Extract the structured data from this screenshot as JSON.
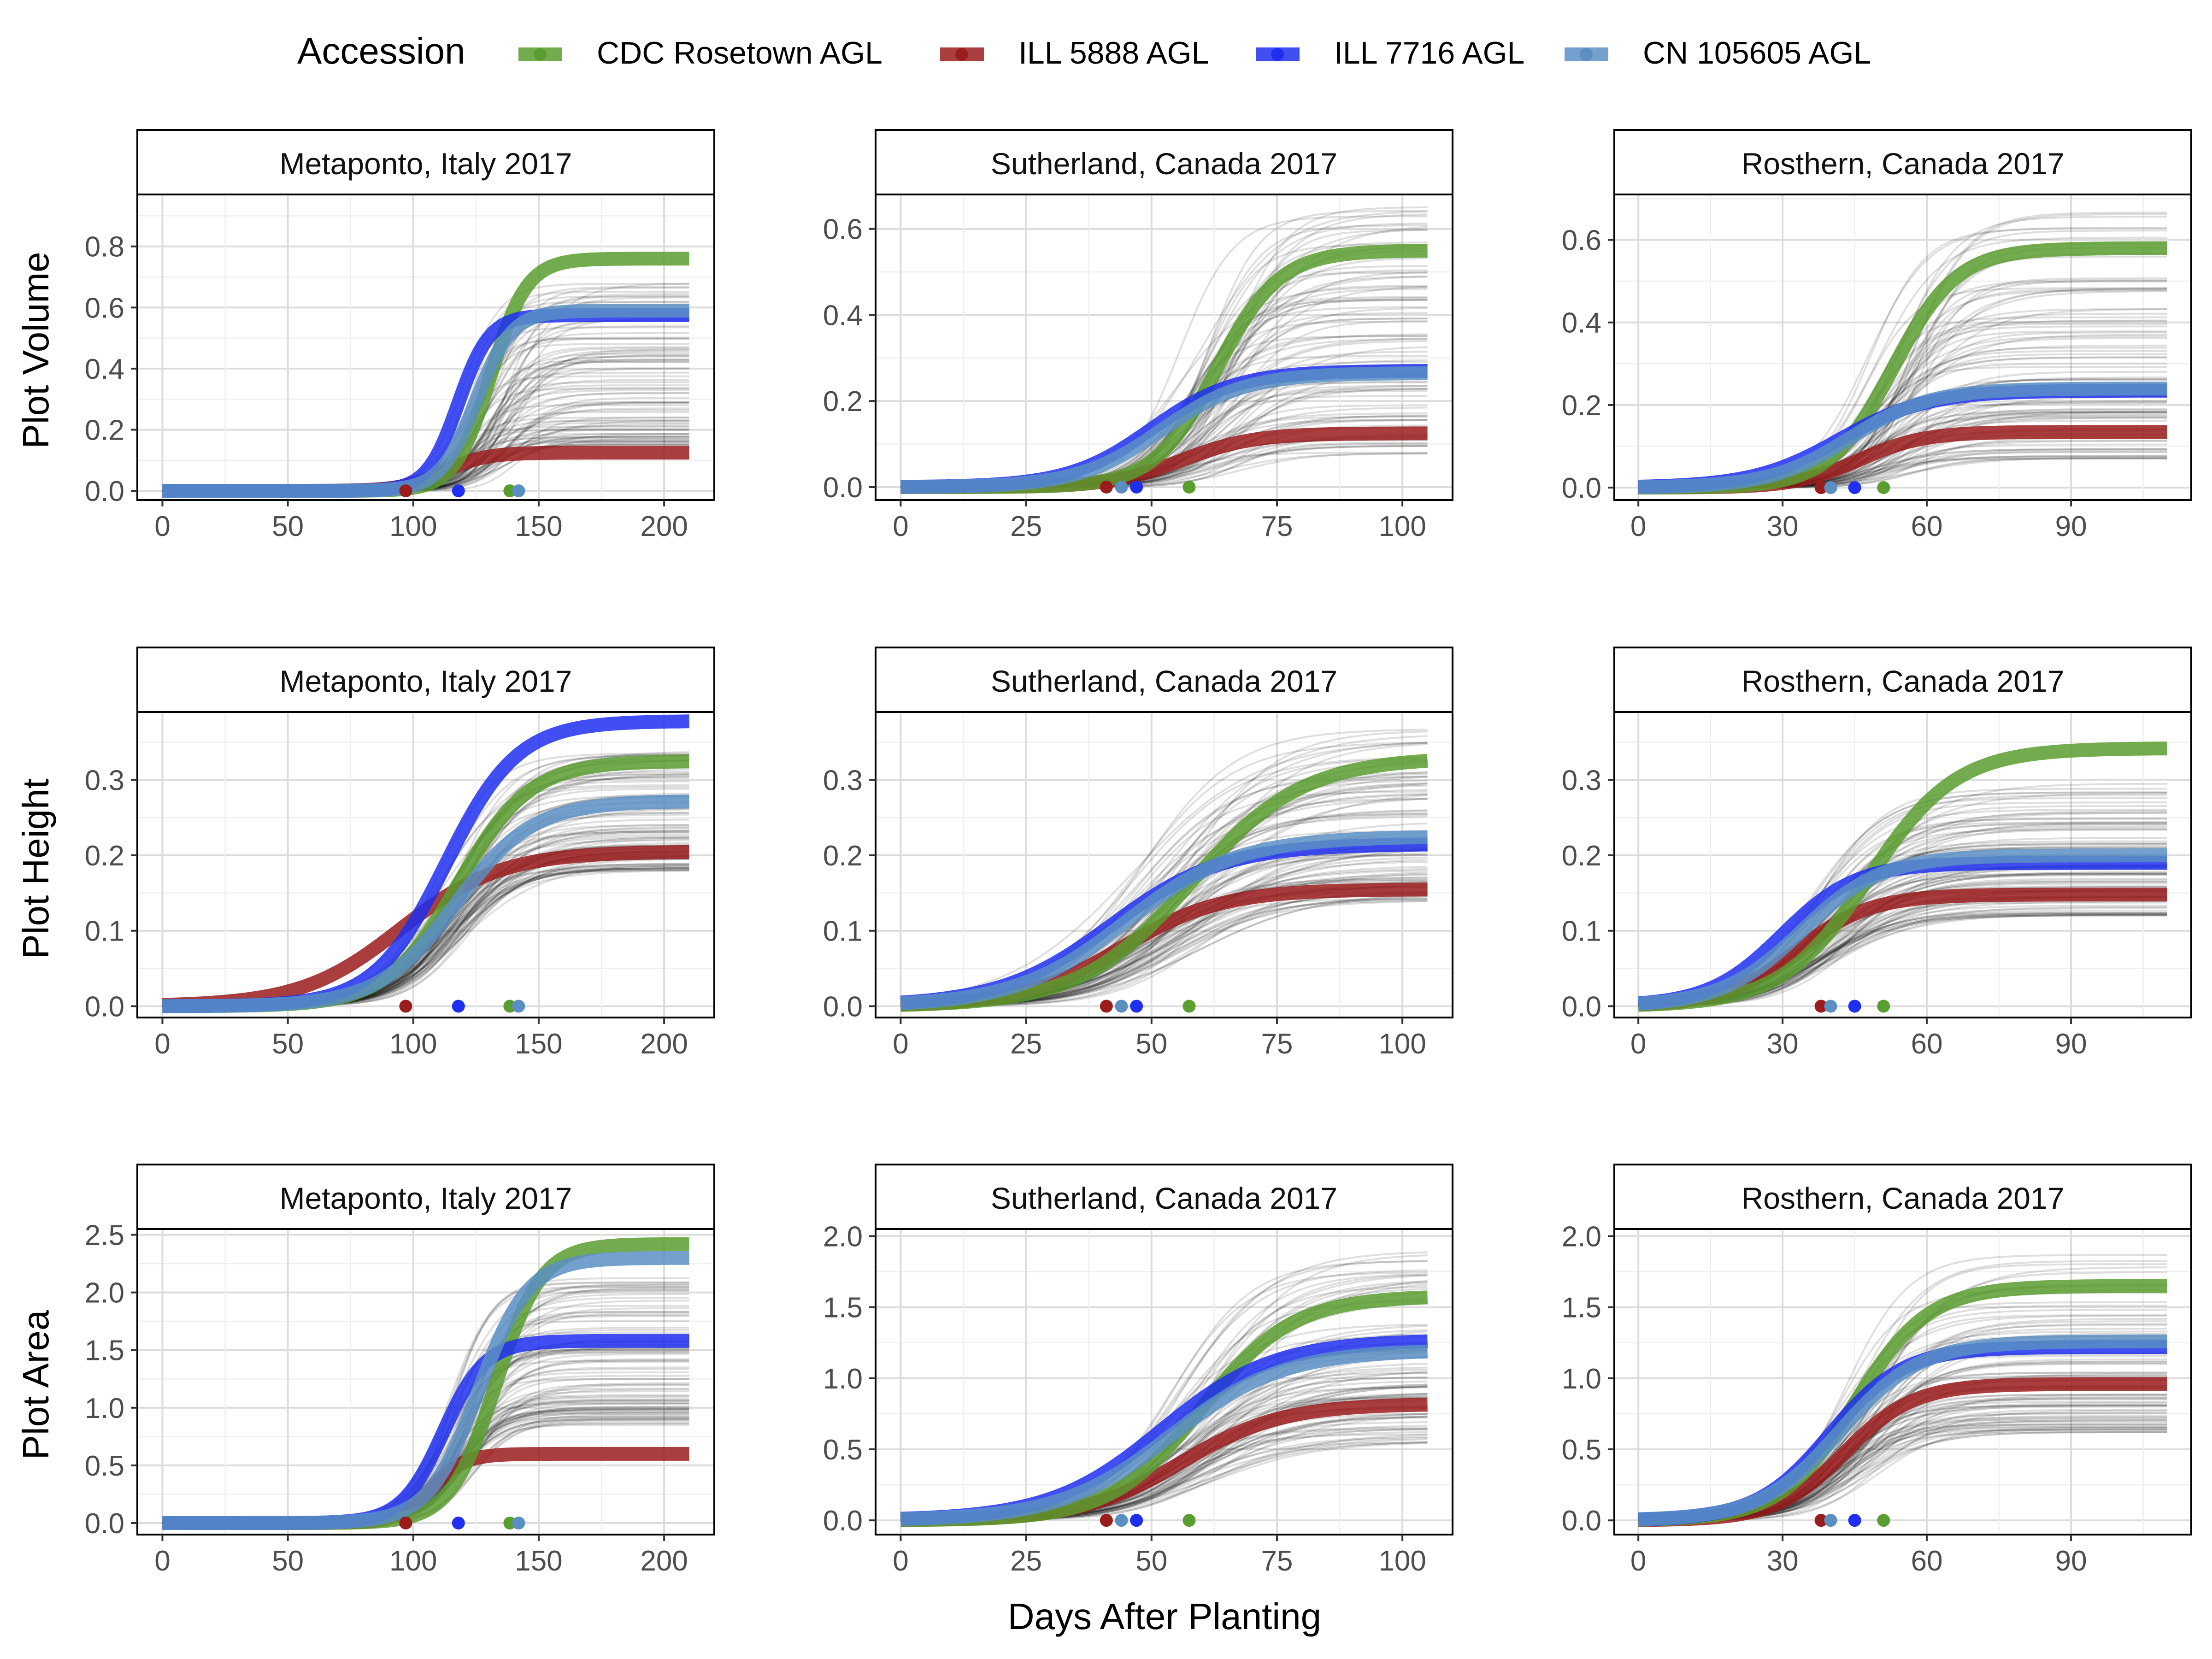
{
  "figure": {
    "x_axis_label": "Days After Planting",
    "background_curve_color": "#000000",
    "legend": {
      "title": "Accession",
      "entries": [
        {
          "name": "CDC Rosetown AGL",
          "color": "#5a9e2f"
        },
        {
          "name": "ILL 5888 AGL",
          "color": "#9b1c1c"
        },
        {
          "name": "ILL 7716 AGL",
          "color": "#1f2ff0"
        },
        {
          "name": "CN 105605 AGL",
          "color": "#5b8fc4"
        }
      ]
    },
    "row_labels": [
      "Plot Volume",
      "Plot Height",
      "Plot Area"
    ],
    "col_titles": [
      "Metaponto, Italy 2017",
      "Sutherland, Canada 2017",
      "Rosthern, Canada 2017"
    ]
  },
  "chart_data": [
    {
      "type": "line",
      "title": "Metaponto, Italy 2017",
      "ylabel": "Plot Volume",
      "xlabel": "Days After Planting",
      "xlim": [
        -10,
        220
      ],
      "ylim": [
        -0.03,
        0.97
      ],
      "x_ticks": [
        0,
        50,
        100,
        150,
        200
      ],
      "y_ticks": [
        0.0,
        0.2,
        0.4,
        0.6,
        0.8
      ],
      "x_tick_labels": [
        "0",
        "50",
        "100",
        "150",
        "200"
      ],
      "y_tick_labels": [
        "0.0",
        "0.2",
        "0.4",
        "0.6",
        "0.8"
      ],
      "x_range": [
        0,
        210
      ],
      "background_curves": {
        "asymptote_range": [
          0.15,
          0.68
        ],
        "midpoint_range": [
          118,
          140
        ],
        "rate_range": [
          0.09,
          0.16
        ],
        "count": 90
      },
      "series": [
        {
          "name": "CDC Rosetown AGL",
          "asymptote": 0.76,
          "midpoint": 131,
          "rate": 0.14,
          "marker_x": 138.5
        },
        {
          "name": "ILL 5888 AGL",
          "asymptote": 0.125,
          "midpoint": 112,
          "rate": 0.12,
          "marker_x": 97
        },
        {
          "name": "ILL 7716 AGL",
          "asymptote": 0.575,
          "midpoint": 118,
          "rate": 0.16,
          "marker_x": 118
        },
        {
          "name": "CN 105605 AGL",
          "asymptote": 0.59,
          "midpoint": 125,
          "rate": 0.14,
          "marker_x": 142
        }
      ]
    },
    {
      "type": "line",
      "title": "Sutherland, Canada 2017",
      "ylabel": "Plot Volume",
      "xlabel": "Days After Planting",
      "xlim": [
        -5,
        110
      ],
      "ylim": [
        -0.03,
        0.68
      ],
      "x_ticks": [
        0,
        25,
        50,
        75,
        100
      ],
      "y_ticks": [
        0.0,
        0.2,
        0.4,
        0.6
      ],
      "x_tick_labels": [
        "0",
        "25",
        "50",
        "75",
        "100"
      ],
      "y_tick_labels": [
        "0.0",
        "0.2",
        "0.4",
        "0.6"
      ],
      "x_range": [
        0,
        105
      ],
      "background_curves": {
        "asymptote_range": [
          0.07,
          0.66
        ],
        "midpoint_range": [
          55,
          68
        ],
        "rate_range": [
          0.12,
          0.2
        ],
        "count": 90
      },
      "series": [
        {
          "name": "CDC Rosetown AGL",
          "asymptote": 0.55,
          "midpoint": 63,
          "rate": 0.16,
          "marker_x": 57.5
        },
        {
          "name": "ILL 5888 AGL",
          "asymptote": 0.125,
          "midpoint": 56,
          "rate": 0.14,
          "marker_x": 41
        },
        {
          "name": "ILL 7716 AGL",
          "asymptote": 0.27,
          "midpoint": 50,
          "rate": 0.12,
          "marker_x": 47
        },
        {
          "name": "CN 105605 AGL",
          "asymptote": 0.265,
          "midpoint": 52,
          "rate": 0.12,
          "marker_x": 44
        }
      ]
    },
    {
      "type": "line",
      "title": "Rosthern, Canada 2017",
      "ylabel": "Plot Volume",
      "xlabel": "Days After Planting",
      "xlim": [
        -5,
        115
      ],
      "ylim": [
        -0.03,
        0.71
      ],
      "x_ticks": [
        0,
        30,
        60,
        90
      ],
      "y_ticks": [
        0.0,
        0.2,
        0.4,
        0.6
      ],
      "x_tick_labels": [
        "0",
        "30",
        "60",
        "90"
      ],
      "y_tick_labels": [
        "0.0",
        "0.2",
        "0.4",
        "0.6"
      ],
      "x_range": [
        0,
        110
      ],
      "background_curves": {
        "asymptote_range": [
          0.07,
          0.67
        ],
        "midpoint_range": [
          47,
          58
        ],
        "rate_range": [
          0.12,
          0.2
        ],
        "count": 90
      },
      "series": [
        {
          "name": "CDC Rosetown AGL",
          "asymptote": 0.58,
          "midpoint": 53,
          "rate": 0.15,
          "marker_x": 51
        },
        {
          "name": "ILL 5888 AGL",
          "asymptote": 0.135,
          "midpoint": 46,
          "rate": 0.15,
          "marker_x": 38
        },
        {
          "name": "ILL 7716 AGL",
          "asymptote": 0.235,
          "midpoint": 42,
          "rate": 0.11,
          "marker_x": 45
        },
        {
          "name": "CN 105605 AGL",
          "asymptote": 0.24,
          "midpoint": 44,
          "rate": 0.12,
          "marker_x": 40
        }
      ]
    },
    {
      "type": "line",
      "title": "Metaponto, Italy 2017",
      "ylabel": "Plot Height",
      "xlabel": "Days After Planting",
      "xlim": [
        -10,
        220
      ],
      "ylim": [
        -0.015,
        0.39
      ],
      "x_ticks": [
        0,
        50,
        100,
        150,
        200
      ],
      "y_ticks": [
        0.0,
        0.1,
        0.2,
        0.3
      ],
      "x_tick_labels": [
        "0",
        "50",
        "100",
        "150",
        "200"
      ],
      "y_tick_labels": [
        "0.0",
        "0.1",
        "0.2",
        "0.3"
      ],
      "x_range": [
        0,
        210
      ],
      "background_curves": {
        "asymptote_range": [
          0.18,
          0.34
        ],
        "midpoint_range": [
          108,
          122
        ],
        "rate_range": [
          0.06,
          0.09
        ],
        "count": 90
      },
      "series": [
        {
          "name": "CDC Rosetown AGL",
          "asymptote": 0.325,
          "midpoint": 118,
          "rate": 0.07,
          "marker_x": 138.5
        },
        {
          "name": "ILL 5888 AGL",
          "asymptote": 0.205,
          "midpoint": 95,
          "rate": 0.05,
          "marker_x": 97
        },
        {
          "name": "ILL 7716 AGL",
          "asymptote": 0.378,
          "midpoint": 113,
          "rate": 0.07,
          "marker_x": 118
        },
        {
          "name": "CN 105605 AGL",
          "asymptote": 0.272,
          "midpoint": 117,
          "rate": 0.065,
          "marker_x": 142
        }
      ]
    },
    {
      "type": "line",
      "title": "Sutherland, Canada 2017",
      "ylabel": "Plot Height",
      "xlabel": "Days After Planting",
      "xlim": [
        -5,
        110
      ],
      "ylim": [
        -0.015,
        0.39
      ],
      "x_ticks": [
        0,
        25,
        50,
        75,
        100
      ],
      "y_ticks": [
        0.0,
        0.1,
        0.2,
        0.3
      ],
      "x_tick_labels": [
        "0",
        "25",
        "50",
        "75",
        "100"
      ],
      "y_tick_labels": [
        "0.0",
        "0.1",
        "0.2",
        "0.3"
      ],
      "x_range": [
        0,
        105
      ],
      "background_curves": {
        "asymptote_range": [
          0.14,
          0.37
        ],
        "midpoint_range": [
          46,
          60
        ],
        "rate_range": [
          0.08,
          0.12
        ],
        "count": 90
      },
      "series": [
        {
          "name": "CDC Rosetown AGL",
          "asymptote": 0.33,
          "midpoint": 58,
          "rate": 0.09,
          "marker_x": 57.5
        },
        {
          "name": "ILL 5888 AGL",
          "asymptote": 0.155,
          "midpoint": 44,
          "rate": 0.1,
          "marker_x": 41
        },
        {
          "name": "ILL 7716 AGL",
          "asymptote": 0.215,
          "midpoint": 42,
          "rate": 0.09,
          "marker_x": 47
        },
        {
          "name": "CN 105605 AGL",
          "asymptote": 0.225,
          "midpoint": 45,
          "rate": 0.09,
          "marker_x": 44
        }
      ]
    },
    {
      "type": "line",
      "title": "Rosthern, Canada 2017",
      "ylabel": "Plot Height",
      "xlabel": "Days After Planting",
      "xlim": [
        -5,
        115
      ],
      "ylim": [
        -0.015,
        0.39
      ],
      "x_ticks": [
        0,
        30,
        60,
        90
      ],
      "y_ticks": [
        0.0,
        0.1,
        0.2,
        0.3
      ],
      "x_tick_labels": [
        "0",
        "30",
        "60",
        "90"
      ],
      "y_tick_labels": [
        "0.0",
        "0.1",
        "0.2",
        "0.3"
      ],
      "x_range": [
        0,
        110
      ],
      "background_curves": {
        "asymptote_range": [
          0.12,
          0.3
        ],
        "midpoint_range": [
          35,
          44
        ],
        "rate_range": [
          0.1,
          0.15
        ],
        "count": 90
      },
      "series": [
        {
          "name": "CDC Rosetown AGL",
          "asymptote": 0.342,
          "midpoint": 48,
          "rate": 0.11,
          "marker_x": 51
        },
        {
          "name": "ILL 5888 AGL",
          "asymptote": 0.148,
          "midpoint": 33,
          "rate": 0.13,
          "marker_x": 38
        },
        {
          "name": "ILL 7716 AGL",
          "asymptote": 0.19,
          "midpoint": 30,
          "rate": 0.13,
          "marker_x": 45
        },
        {
          "name": "CN 105605 AGL",
          "asymptote": 0.2,
          "midpoint": 34,
          "rate": 0.12,
          "marker_x": 40
        }
      ]
    },
    {
      "type": "line",
      "title": "Metaponto, Italy 2017",
      "ylabel": "Plot Area",
      "xlabel": "Days After Planting",
      "xlim": [
        -10,
        220
      ],
      "ylim": [
        -0.1,
        2.55
      ],
      "x_ticks": [
        0,
        50,
        100,
        150,
        200
      ],
      "y_ticks": [
        0.0,
        0.5,
        1.0,
        1.5,
        2.0,
        2.5
      ],
      "x_tick_labels": [
        "0",
        "50",
        "100",
        "150",
        "200"
      ],
      "y_tick_labels": [
        "0.0",
        "0.5",
        "1.0",
        "1.5",
        "2.0",
        "2.5"
      ],
      "x_range": [
        0,
        210
      ],
      "background_curves": {
        "asymptote_range": [
          0.85,
          2.15
        ],
        "midpoint_range": [
          112,
          126
        ],
        "rate_range": [
          0.09,
          0.13
        ],
        "count": 90
      },
      "series": [
        {
          "name": "CDC Rosetown AGL",
          "asymptote": 2.42,
          "midpoint": 133,
          "rate": 0.11,
          "marker_x": 138.5
        },
        {
          "name": "ILL 5888 AGL",
          "asymptote": 0.6,
          "midpoint": 107,
          "rate": 0.15,
          "marker_x": 97
        },
        {
          "name": "ILL 7716 AGL",
          "asymptote": 1.58,
          "midpoint": 112,
          "rate": 0.12,
          "marker_x": 118
        },
        {
          "name": "CN 105605 AGL",
          "asymptote": 2.3,
          "midpoint": 126,
          "rate": 0.1,
          "marker_x": 142
        }
      ]
    },
    {
      "type": "line",
      "title": "Sutherland, Canada 2017",
      "ylabel": "Plot Area",
      "xlabel": "Days After Planting",
      "xlim": [
        -5,
        110
      ],
      "ylim": [
        -0.1,
        2.05
      ],
      "x_ticks": [
        0,
        25,
        50,
        75,
        100
      ],
      "y_ticks": [
        0.0,
        0.5,
        1.0,
        1.5,
        2.0
      ],
      "x_tick_labels": [
        "0",
        "25",
        "50",
        "75",
        "100"
      ],
      "y_tick_labels": [
        "0.0",
        "0.5",
        "1.0",
        "1.5",
        "2.0"
      ],
      "x_range": [
        0,
        105
      ],
      "background_curves": {
        "asymptote_range": [
          0.55,
          1.92
        ],
        "midpoint_range": [
          52,
          64
        ],
        "rate_range": [
          0.09,
          0.13
        ],
        "count": 90
      },
      "series": [
        {
          "name": "CDC Rosetown AGL",
          "asymptote": 1.58,
          "midpoint": 60,
          "rate": 0.11,
          "marker_x": 57.5
        },
        {
          "name": "ILL 5888 AGL",
          "asymptote": 0.82,
          "midpoint": 56,
          "rate": 0.1,
          "marker_x": 41
        },
        {
          "name": "ILL 7716 AGL",
          "asymptote": 1.27,
          "midpoint": 52,
          "rate": 0.09,
          "marker_x": 47
        },
        {
          "name": "CN 105605 AGL",
          "asymptote": 1.2,
          "midpoint": 54,
          "rate": 0.09,
          "marker_x": 44
        }
      ]
    },
    {
      "type": "line",
      "title": "Rosthern, Canada 2017",
      "ylabel": "Plot Area",
      "xlabel": "Days After Planting",
      "xlim": [
        -5,
        115
      ],
      "ylim": [
        -0.1,
        2.05
      ],
      "x_ticks": [
        0,
        30,
        60,
        90
      ],
      "y_ticks": [
        0.0,
        0.5,
        1.0,
        1.5,
        2.0
      ],
      "x_tick_labels": [
        "0",
        "30",
        "60",
        "90"
      ],
      "y_tick_labels": [
        "0.0",
        "0.5",
        "1.0",
        "1.5",
        "2.0"
      ],
      "x_range": [
        0,
        110
      ],
      "background_curves": {
        "asymptote_range": [
          0.62,
          1.9
        ],
        "midpoint_range": [
          40,
          50
        ],
        "rate_range": [
          0.12,
          0.17
        ],
        "count": 90
      },
      "series": [
        {
          "name": "CDC Rosetown AGL",
          "asymptote": 1.65,
          "midpoint": 45,
          "rate": 0.13,
          "marker_x": 51
        },
        {
          "name": "ILL 5888 AGL",
          "asymptote": 0.96,
          "midpoint": 43,
          "rate": 0.14,
          "marker_x": 38
        },
        {
          "name": "ILL 7716 AGL",
          "asymptote": 1.22,
          "midpoint": 40,
          "rate": 0.13,
          "marker_x": 45
        },
        {
          "name": "CN 105605 AGL",
          "asymptote": 1.26,
          "midpoint": 42,
          "rate": 0.12,
          "marker_x": 40
        }
      ]
    }
  ]
}
